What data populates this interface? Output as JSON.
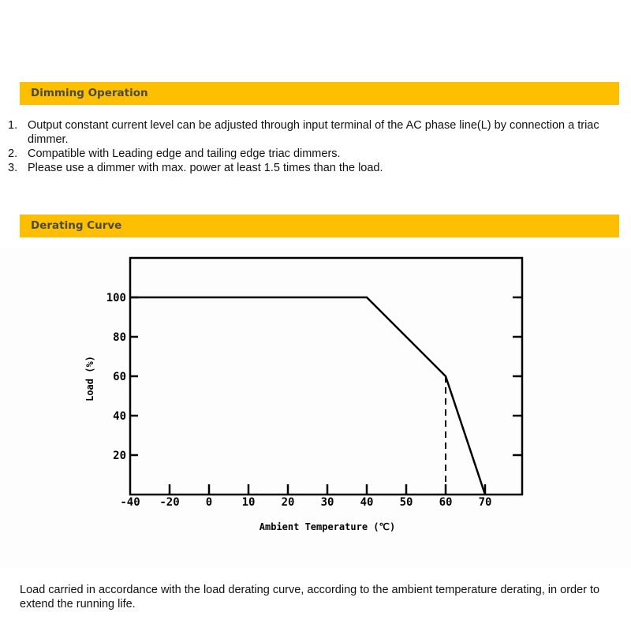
{
  "sections": {
    "dimming": {
      "title": "Dimming Operation",
      "items": [
        {
          "num": "1.",
          "text": "Output constant current level can be adjusted through input terminal of the AC phase line(L) by connection a triac dimmer."
        },
        {
          "num": "2.",
          "text": "Compatible with Leading edge and tailing edge triac dimmers."
        },
        {
          "num": "3.",
          "text": "Please use a dimmer with max. power at least 1.5 times than the load."
        }
      ]
    },
    "derating": {
      "title": "Derating Curve",
      "note": "Load carried in accordance with the load derating curve, according to the ambient temperature derating, in order to extend the running life."
    }
  },
  "colors": {
    "header_bar": "#fdbf00",
    "header_text": "#4a4a4a",
    "line": "#000000"
  },
  "chart_data": {
    "type": "line",
    "xlabel": "Ambient Temperature (℃)",
    "ylabel": "Load (%)",
    "x_ticks": [
      "-40",
      "-20",
      "0",
      "10",
      "20",
      "30",
      "40",
      "50",
      "60",
      "70"
    ],
    "y_ticks": [
      "20",
      "40",
      "60",
      "80",
      "100"
    ],
    "ylim": [
      0,
      120
    ],
    "grid": false,
    "series": [
      {
        "x": [
          -40,
          40,
          60,
          70
        ],
        "y": [
          100,
          100,
          60,
          0
        ],
        "style": "solid"
      },
      {
        "x": [
          60,
          60
        ],
        "y": [
          60,
          0
        ],
        "style": "dashed"
      }
    ]
  }
}
